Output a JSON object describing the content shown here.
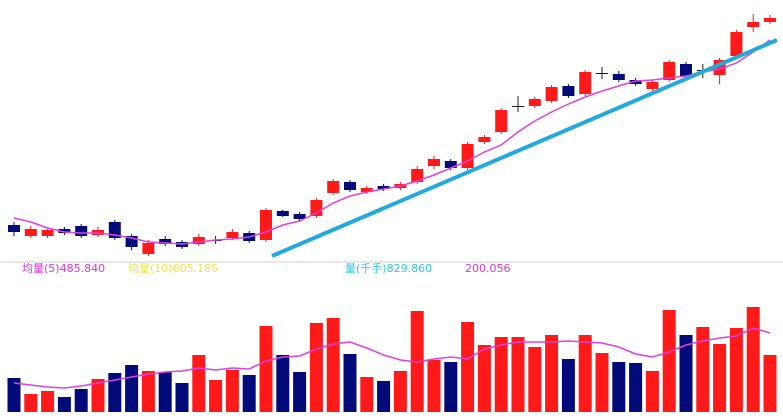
{
  "chart_data": {
    "type": "candlestick",
    "labels": [
      {
        "text": "均量(5)485.840",
        "color": "#e030e0"
      },
      {
        "text": "均量(10)605.185",
        "color": "#e8e840"
      },
      {
        "text": "量(千手)829.860",
        "color": "#30c8e8"
      },
      {
        "text": "200.056",
        "color": "#e030e0"
      }
    ],
    "up_color": "#ff1a1a",
    "down_color": "#000a78",
    "doji_color": "#202020",
    "ma_color": "#e040e0",
    "ylim": [
      0,
      270
    ],
    "vol_ylim": [
      0,
      140
    ],
    "candles": [
      {
        "open": 45,
        "close": 38,
        "high": 48,
        "low": 34
      },
      {
        "open": 34,
        "close": 41,
        "high": 44,
        "low": 32
      },
      {
        "open": 34,
        "close": 40,
        "high": 42,
        "low": 32
      },
      {
        "open": 41,
        "close": 37,
        "high": 43,
        "low": 35
      },
      {
        "open": 44,
        "close": 34,
        "high": 46,
        "low": 32
      },
      {
        "open": 35,
        "close": 40,
        "high": 43,
        "low": 33
      },
      {
        "open": 48,
        "close": 32,
        "high": 50,
        "low": 30
      },
      {
        "open": 34,
        "close": 23,
        "high": 36,
        "low": 20
      },
      {
        "open": 16,
        "close": 27,
        "high": 30,
        "low": 14
      },
      {
        "open": 31,
        "close": 26,
        "high": 34,
        "low": 24
      },
      {
        "open": 28,
        "close": 23,
        "high": 30,
        "low": 21
      },
      {
        "open": 26,
        "close": 33,
        "high": 36,
        "low": 24
      },
      {
        "open": 30,
        "close": 30,
        "high": 34,
        "low": 26
      },
      {
        "open": 32,
        "close": 38,
        "high": 41,
        "low": 30
      },
      {
        "open": 37,
        "close": 29,
        "high": 39,
        "low": 27
      },
      {
        "open": 30,
        "close": 60,
        "high": 62,
        "low": 28
      },
      {
        "open": 59,
        "close": 54,
        "high": 60,
        "low": 53
      },
      {
        "open": 56,
        "close": 51,
        "high": 58,
        "low": 48
      },
      {
        "open": 54,
        "close": 70,
        "high": 72,
        "low": 52
      },
      {
        "open": 77,
        "close": 89,
        "high": 91,
        "low": 75
      },
      {
        "open": 88,
        "close": 80,
        "high": 90,
        "low": 78
      },
      {
        "open": 78,
        "close": 82,
        "high": 84,
        "low": 76
      },
      {
        "open": 84,
        "close": 81,
        "high": 86,
        "low": 79
      },
      {
        "open": 82,
        "close": 86,
        "high": 88,
        "low": 80
      },
      {
        "open": 88,
        "close": 101,
        "high": 104,
        "low": 86
      },
      {
        "open": 104,
        "close": 111,
        "high": 114,
        "low": 101
      },
      {
        "open": 109,
        "close": 102,
        "high": 111,
        "low": 100
      },
      {
        "open": 102,
        "close": 126,
        "high": 128,
        "low": 100
      },
      {
        "open": 128,
        "close": 133,
        "high": 135,
        "low": 126
      },
      {
        "open": 138,
        "close": 160,
        "high": 162,
        "low": 136
      },
      {
        "open": 164,
        "close": 164,
        "high": 174,
        "low": 158
      },
      {
        "open": 164,
        "close": 171,
        "high": 173,
        "low": 162
      },
      {
        "open": 169,
        "close": 183,
        "high": 185,
        "low": 167
      },
      {
        "open": 184,
        "close": 174,
        "high": 186,
        "low": 172
      },
      {
        "open": 176,
        "close": 198,
        "high": 200,
        "low": 174
      },
      {
        "open": 197,
        "close": 197,
        "high": 203,
        "low": 191
      },
      {
        "open": 196,
        "close": 190,
        "high": 199,
        "low": 188
      },
      {
        "open": 190,
        "close": 186,
        "high": 192,
        "low": 184
      },
      {
        "open": 181,
        "close": 188,
        "high": 190,
        "low": 179
      },
      {
        "open": 190,
        "close": 208,
        "high": 210,
        "low": 188
      },
      {
        "open": 206,
        "close": 193,
        "high": 208,
        "low": 191
      },
      {
        "open": 200,
        "close": 200,
        "high": 206,
        "low": 192
      },
      {
        "open": 195,
        "close": 210,
        "high": 212,
        "low": 186
      },
      {
        "open": 214,
        "close": 238,
        "high": 240,
        "low": 212
      },
      {
        "open": 243,
        "close": 248,
        "high": 256,
        "low": 238
      },
      {
        "open": 248,
        "close": 252,
        "high": 255,
        "low": 246
      }
    ],
    "ma": [
      52,
      48,
      42,
      38,
      37,
      37,
      35,
      32,
      28,
      27,
      26,
      28,
      30,
      31,
      33,
      38,
      45,
      49,
      57,
      67,
      74,
      78,
      81,
      84,
      89,
      95,
      102,
      109,
      118,
      125,
      138,
      149,
      158,
      166,
      173,
      179,
      184,
      189,
      190,
      192,
      194,
      198,
      201,
      207,
      218,
      230
    ],
    "volume": [
      34,
      18,
      21,
      15,
      23,
      33,
      39,
      47,
      41,
      40,
      29,
      57,
      32,
      42,
      37,
      86,
      57,
      40,
      89,
      94,
      58,
      35,
      31,
      41,
      101,
      52,
      50,
      90,
      67,
      75,
      75,
      65,
      77,
      53,
      77,
      59,
      50,
      49,
      41,
      102,
      77,
      85,
      68,
      84,
      105,
      57
    ],
    "volume_ma": [
      29,
      27,
      25,
      24,
      26,
      29,
      32,
      35,
      38,
      40,
      41,
      44,
      42,
      44,
      43,
      51,
      55,
      56,
      63,
      68,
      70,
      64,
      57,
      52,
      50,
      53,
      55,
      53,
      63,
      67,
      70,
      70,
      70,
      71,
      70,
      69,
      65,
      58,
      55,
      60,
      67,
      71,
      74,
      76,
      84,
      79
    ]
  }
}
